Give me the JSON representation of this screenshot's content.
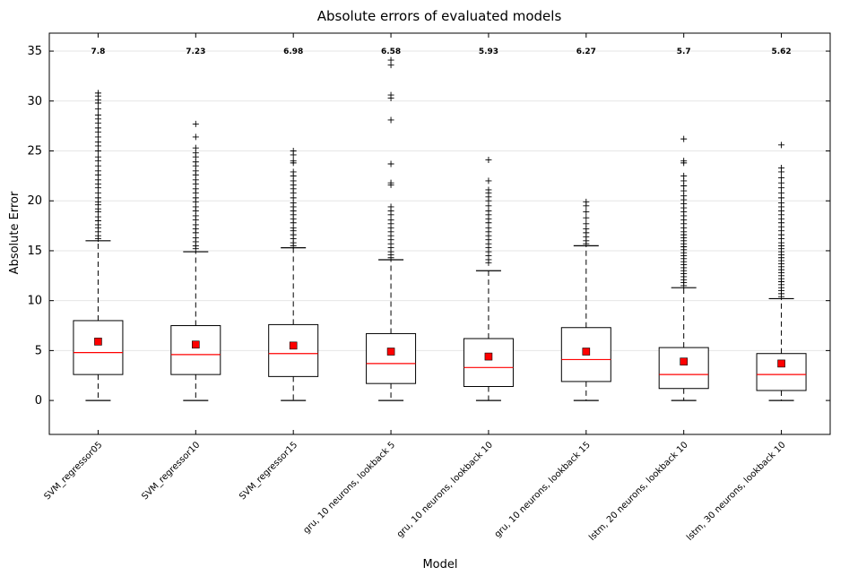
{
  "chart_data": {
    "type": "box",
    "title": "Absolute errors of evaluated models",
    "xlabel": "Model",
    "ylabel": "Absolute Error",
    "ylim": [
      -3.4,
      36.8
    ],
    "yticks": [
      0,
      5,
      10,
      15,
      20,
      25,
      30,
      35
    ],
    "grid": "horizontal",
    "colors": {
      "median": "#ff0000",
      "mean_marker": "#ff0000",
      "box": "#000000",
      "grid": "#e6e6e6"
    },
    "categories": [
      "SVM_regressor05",
      "SVM_regressor10",
      "SVM_regressor15",
      "gru, 10 neurons, lookback 5",
      "gru, 10 neurons, lookback 10",
      "gru, 10 neurons, lookback 15",
      "lstm, 20 neurons, lookback 10",
      "lstm, 30 neurons, lookback 10"
    ],
    "annotations": [
      "7.8",
      "7.23",
      "6.98",
      "6.58",
      "5.93",
      "6.27",
      "5.7",
      "5.62"
    ],
    "boxes": [
      {
        "whislo": 0,
        "q1": 2.6,
        "med": 4.8,
        "q3": 8.0,
        "whishi": 16.0,
        "mean": 5.9,
        "fliers": [
          16.2,
          16.5,
          16.9,
          17.3,
          17.6,
          18.0,
          18.4,
          18.9,
          19.2,
          19.6,
          19.9,
          20.3,
          20.8,
          21.3,
          21.7,
          22.1,
          22.6,
          23.0,
          23.5,
          24.0,
          24.4,
          25.0,
          25.5,
          25.9,
          26.4,
          26.9,
          27.3,
          27.8,
          28.2,
          28.6,
          29.2,
          29.8,
          30.1,
          30.5,
          30.8
        ]
      },
      {
        "whislo": 0,
        "q1": 2.6,
        "med": 4.6,
        "q3": 7.5,
        "whishi": 14.9,
        "mean": 5.6,
        "fliers": [
          15.2,
          15.5,
          15.9,
          16.3,
          16.8,
          17.2,
          17.6,
          18.1,
          18.5,
          19.0,
          19.4,
          19.9,
          20.3,
          20.8,
          21.2,
          21.7,
          22.1,
          22.6,
          23.0,
          23.5,
          23.9,
          24.4,
          24.8,
          25.3,
          26.4,
          27.7
        ]
      },
      {
        "whislo": 0,
        "q1": 2.4,
        "med": 4.7,
        "q3": 7.6,
        "whishi": 15.3,
        "mean": 5.5,
        "fliers": [
          15.5,
          15.8,
          16.2,
          16.6,
          17.0,
          17.3,
          17.8,
          18.2,
          18.6,
          19.0,
          19.4,
          19.8,
          20.3,
          20.8,
          21.2,
          21.6,
          22.0,
          22.5,
          22.9,
          23.8,
          24.0,
          24.6,
          25.0
        ]
      },
      {
        "whislo": 0,
        "q1": 1.7,
        "med": 3.7,
        "q3": 6.7,
        "whishi": 14.1,
        "mean": 4.9,
        "fliers": [
          14.3,
          14.6,
          14.9,
          15.3,
          15.7,
          16.1,
          16.5,
          16.9,
          17.3,
          17.7,
          18.1,
          18.6,
          19.0,
          19.4,
          21.6,
          21.8,
          23.7,
          28.1,
          30.3,
          30.6,
          33.6,
          34.1
        ]
      },
      {
        "whislo": 0,
        "q1": 1.4,
        "med": 3.3,
        "q3": 6.2,
        "whishi": 13.0,
        "mean": 4.4,
        "fliers": [
          13.8,
          14.1,
          14.5,
          14.9,
          15.3,
          15.7,
          16.1,
          16.5,
          16.9,
          17.3,
          17.8,
          18.2,
          18.6,
          19.0,
          19.5,
          20.0,
          20.4,
          20.8,
          21.1,
          22.0,
          24.1
        ]
      },
      {
        "whislo": 0,
        "q1": 1.9,
        "med": 4.1,
        "q3": 7.3,
        "whishi": 15.5,
        "mean": 4.9,
        "fliers": [
          15.7,
          16.0,
          16.4,
          16.8,
          17.2,
          17.7,
          18.3,
          18.9,
          19.5,
          19.9
        ]
      },
      {
        "whislo": 0,
        "q1": 1.2,
        "med": 2.6,
        "q3": 5.3,
        "whishi": 11.3,
        "mean": 3.9,
        "fliers": [
          11.5,
          11.8,
          12.1,
          12.4,
          12.7,
          13.0,
          13.3,
          13.6,
          13.9,
          14.2,
          14.5,
          14.8,
          15.1,
          15.4,
          15.7,
          16.0,
          16.3,
          16.6,
          16.9,
          17.3,
          17.7,
          18.1,
          18.5,
          18.9,
          19.3,
          19.7,
          20.1,
          20.5,
          21.0,
          21.5,
          22.0,
          22.5,
          23.8,
          24.0,
          26.2
        ]
      },
      {
        "whislo": 0,
        "q1": 1.0,
        "med": 2.6,
        "q3": 4.7,
        "whishi": 10.2,
        "mean": 3.7,
        "fliers": [
          10.4,
          10.7,
          11.0,
          11.3,
          11.6,
          11.9,
          12.2,
          12.5,
          12.8,
          13.1,
          13.4,
          13.7,
          14.0,
          14.3,
          14.6,
          14.9,
          15.2,
          15.5,
          15.8,
          16.2,
          16.6,
          17.0,
          17.4,
          17.8,
          18.2,
          18.6,
          19.0,
          19.4,
          19.8,
          20.3,
          20.8,
          21.3,
          21.8,
          22.3,
          22.9,
          23.3,
          25.6
        ]
      }
    ]
  }
}
